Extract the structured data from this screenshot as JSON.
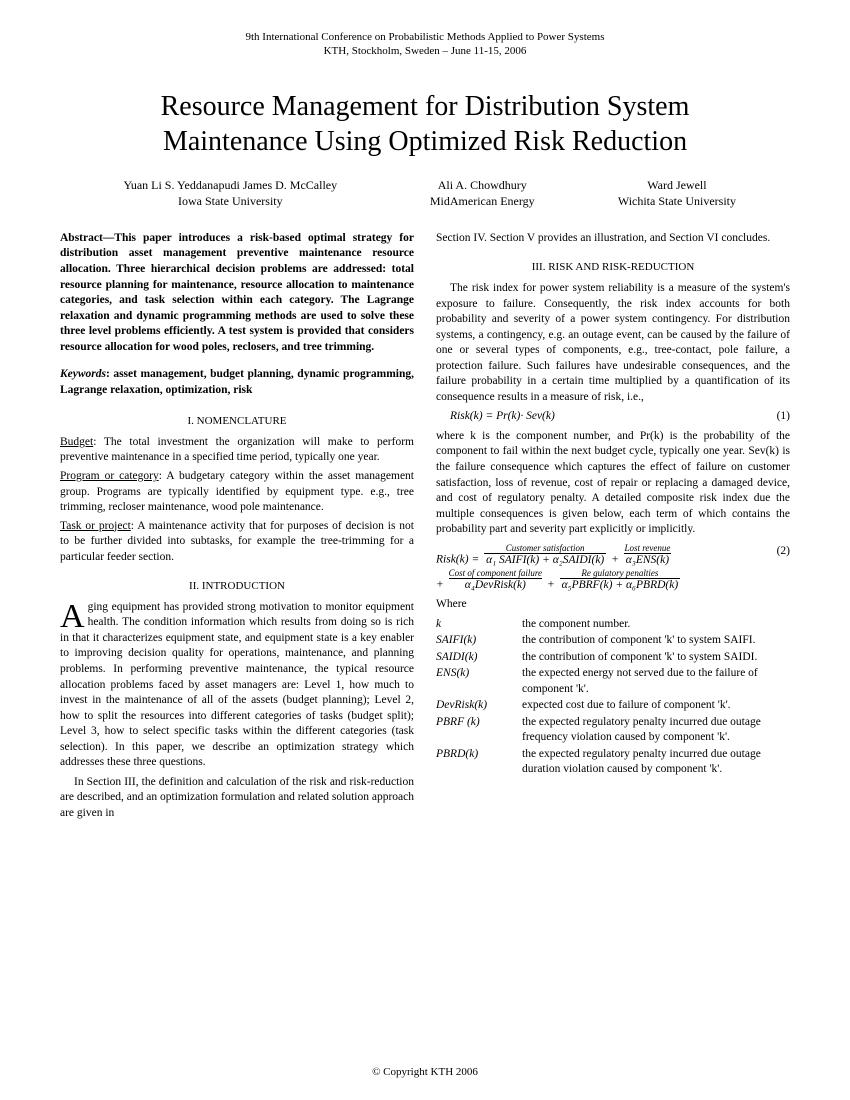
{
  "header": {
    "line1": "9th International Conference on Probabilistic Methods Applied to Power Systems",
    "line2": "KTH, Stockholm, Sweden – June 11-15, 2006"
  },
  "title": "Resource Management for Distribution System Maintenance Using Optimized Risk Reduction",
  "authors": {
    "left": {
      "names": "Yuan Li      S. Yeddanapudi      James D. McCalley",
      "affil": "Iowa State University"
    },
    "mid": {
      "names": "Ali A. Chowdhury",
      "affil": "MidAmerican Energy"
    },
    "right": {
      "names": "Ward Jewell",
      "affil": "Wichita State University"
    }
  },
  "abstract": "Abstract—This paper introduces a risk-based optimal strategy for distribution asset management preventive maintenance resource allocation. Three hierarchical decision problems are addressed: total resource planning for maintenance, resource allocation to maintenance categories, and task selection within each category. The Lagrange relaxation and dynamic programming methods are used to solve these three level problems efficiently. A test system is provided that considers resource allocation for wood poles, reclosers, and tree trimming.",
  "keywords": {
    "label": "Keywords",
    "text": ": asset management, budget planning, dynamic programming, Lagrange relaxation, optimization, risk"
  },
  "sect1_head": "I.   NOMENCLATURE",
  "nomen": {
    "budget_t": "Budget",
    "budget_d": ": The total investment the organization will make to perform preventive maintenance in a specified time period, typically one year.",
    "prog_t": "Program or category",
    "prog_d": ": A budgetary category within the asset management group. Programs are typically identified by equipment type. e.g., tree trimming, recloser maintenance, wood pole maintenance.",
    "task_t": "Task or project",
    "task_d": ": A maintenance activity that for purposes of decision is not to be further divided into subtasks, for example the tree-trimming for a particular feeder section."
  },
  "sect2_head": "II.   INTRODUCTION",
  "intro_drop": "A",
  "intro_p1": "ging equipment has provided strong motivation to monitor equipment health. The condition information which results from doing so is rich in that it characterizes equipment state, and equipment state is a key enabler to improving decision quality for operations, maintenance, and planning problems. In performing preventive maintenance, the typical resource allocation problems faced by asset managers are: Level 1, how much to invest in the maintenance of all of the assets (budget planning); Level 2, how to split the resources into different categories of tasks (budget split); Level 3, how to select specific tasks within the different categories (task selection). In this paper, we describe an optimization strategy which addresses these three questions.",
  "intro_p2": "In Section III, the definition and calculation of the risk and risk-reduction are described, and an optimization formulation and related solution approach are given in",
  "col2_top": "Section IV.  Section V provides an illustration, and Section VI concludes.",
  "sect3_head": "III.   RISK AND RISK-REDUCTION",
  "risk_p1": "The risk index for power system reliability is a measure of the system's exposure to failure. Consequently, the risk index accounts for both probability and severity of a power system contingency. For distribution systems, a contingency, e.g. an outage event, can be caused by the failure of one or several types of components, e.g., tree-contact, pole failure, a protection failure. Such failures have undesirable consequences, and the failure probability in a certain time multiplied by a quantification of its consequence results in a measure of risk, i.e.,",
  "eq1": "Risk(k) = Pr(k)· Sev(k)",
  "eq1_num": "(1)",
  "risk_p2": "where k is the component number, and Pr(k) is the probability of the component to fail within the next budget cycle, typically one year. Sev(k) is the failure consequence which captures the effect of failure on customer satisfaction, loss of revenue, cost of repair or replacing a damaged device, and cost of regulatory penalty. A detailed composite risk index due the multiple consequences is given below, each term of which contains the probability part and severity part explicitly or implicitly.",
  "eq2": {
    "lead": "Risk(k) = ",
    "cs_label": "Customer satisfaction",
    "cs_body": "α₁ SAIFI(k) + α₂SAIDI(k)",
    "lr_label": "Lost  revenue",
    "lr_body": "α₃ENS(k)",
    "num": "(2)",
    "cf_label": "Cost of  component  failure",
    "cf_body": "α₄DevRisk(k)",
    "rp_label": "Re gulatory  penalties",
    "rp_body": "α₅PBRF(k) + α₆PBRD(k)",
    "plus": " + "
  },
  "where": "Where",
  "defs": [
    {
      "t": "k",
      "d": "the component number."
    },
    {
      "t": "SAIFI(k)",
      "d": "the contribution of component 'k' to system SAIFI."
    },
    {
      "t": "SAIDI(k)",
      "d": "the contribution of component 'k' to system SAIDI."
    },
    {
      "t": "ENS(k)",
      "d": "the expected energy not served due to the failure of component 'k'."
    },
    {
      "t": "DevRisk(k)",
      "d": "expected cost due to failure of component 'k'."
    },
    {
      "t": "PBRF (k)",
      "d": "the expected regulatory penalty incurred due outage frequency violation caused by component 'k'."
    },
    {
      "t": "PBRD(k)",
      "d": "the expected regulatory penalty incurred due outage duration violation caused by component 'k'."
    }
  ],
  "footer": "© Copyright KTH 2006"
}
